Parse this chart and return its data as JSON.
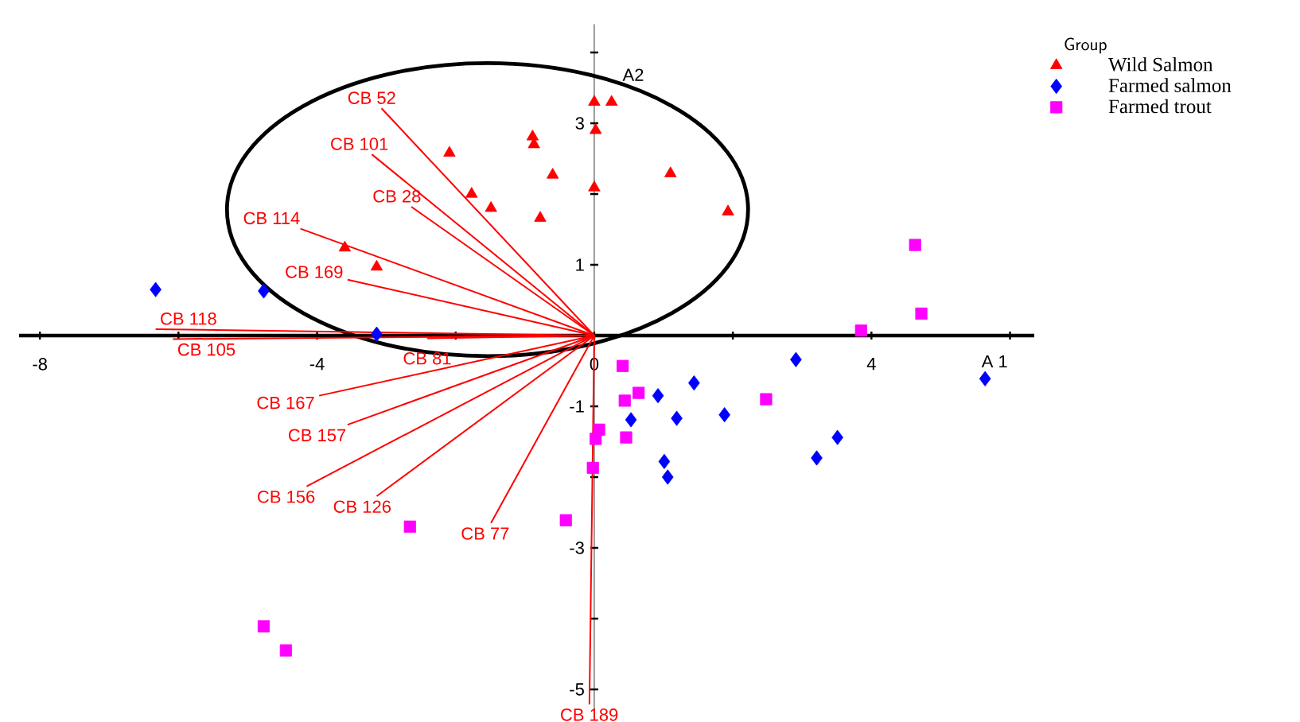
{
  "chart_data": {
    "type": "scatter",
    "xlabel": "A 1",
    "ylabel": "A2",
    "legend_title": "Group",
    "legend": "top right",
    "grid": false,
    "xlim": [
      -8.3,
      6.35
    ],
    "ylim": [
      -5.4,
      4.4
    ],
    "xticks": [
      -8,
      {
        "value": -6,
        "label": null
      },
      -4,
      {
        "value": -2,
        "label": null
      },
      0,
      {
        "value": 2,
        "label": null
      },
      4,
      {
        "value": 6,
        "label": null
      }
    ],
    "yticks": [
      {
        "value": 4,
        "label": null
      },
      3,
      {
        "value": 2,
        "label": null
      },
      1,
      -1,
      {
        "value": -2,
        "label": null
      },
      -3,
      {
        "value": -4,
        "label": null
      },
      -5
    ],
    "series": [
      {
        "name": "Wild Salmon",
        "type": "scatter",
        "marker": "triangle",
        "color": "#ff0000",
        "x": [
          -3.6,
          -3.14,
          -2.09,
          -1.77,
          -1.49,
          -0.89,
          -0.87,
          -0.6,
          -0.78,
          0,
          0.25,
          0.02,
          0,
          1.1,
          1.93
        ],
        "values": [
          1.24,
          0.97,
          2.58,
          2.0,
          1.8,
          2.81,
          2.7,
          2.27,
          1.66,
          3.3,
          3.3,
          2.9,
          2.09,
          2.29,
          1.75
        ]
      },
      {
        "name": "Farmed salmon",
        "type": "scatter",
        "marker": "diamond",
        "color": "#0000ff",
        "x": [
          -6.33,
          -4.77,
          -3.14,
          2.91,
          1.44,
          0.92,
          0.53,
          1.19,
          1.88,
          1.01,
          1.06,
          3.21,
          3.51,
          5.64
        ],
        "values": [
          0.65,
          0.63,
          0.02,
          -0.34,
          -0.67,
          -0.85,
          -1.19,
          -1.17,
          -1.12,
          -1.78,
          -2.0,
          -1.73,
          -1.44,
          -0.61
        ]
      },
      {
        "name": "Farmed trout",
        "type": "scatter",
        "marker": "square",
        "color": "#ff00ff",
        "x": [
          4.63,
          4.72,
          3.85,
          0.41,
          0.64,
          0.44,
          0.46,
          0.07,
          0.02,
          -0.02,
          2.48,
          -0.41,
          -2.66,
          -4.77,
          -4.45
        ],
        "values": [
          1.28,
          0.31,
          0.07,
          -0.43,
          -0.81,
          -0.92,
          -1.44,
          -1.33,
          -1.46,
          -1.87,
          -0.9,
          -2.61,
          -2.7,
          -4.11,
          -4.45
        ]
      },
      {
        "name": "CB 52",
        "type": "line",
        "color": "#ff0000",
        "x": [
          0,
          -3.07
        ],
        "values": [
          0,
          3.21
        ]
      },
      {
        "name": "CB 101",
        "type": "line",
        "color": "#ff0000",
        "x": [
          0,
          -3.21
        ],
        "values": [
          0,
          2.56
        ]
      },
      {
        "name": "CB 28",
        "type": "line",
        "color": "#ff0000",
        "x": [
          0,
          -2.64
        ],
        "values": [
          0,
          1.82
        ]
      },
      {
        "name": "CB 114",
        "type": "line",
        "color": "#ff0000",
        "x": [
          0,
          -4.24
        ],
        "values": [
          0,
          1.51
        ]
      },
      {
        "name": "CB 169",
        "type": "line",
        "color": "#ff0000",
        "x": [
          0,
          -3.56
        ],
        "values": [
          0,
          0.79
        ]
      },
      {
        "name": "CB 118",
        "type": "line",
        "color": "#ff0000",
        "x": [
          0,
          -6.33
        ],
        "values": [
          0,
          0.09
        ]
      },
      {
        "name": "CB 105",
        "type": "line",
        "color": "#ff0000",
        "x": [
          0,
          -6.08
        ],
        "values": [
          0,
          -0.05
        ]
      },
      {
        "name": "CB 81",
        "type": "line",
        "color": "#ff0000",
        "x": [
          0,
          -2.41
        ],
        "values": [
          0,
          -0.04
        ]
      },
      {
        "name": "CB 167",
        "type": "line",
        "color": "#ff0000",
        "x": [
          0,
          -3.97
        ],
        "values": [
          0,
          -0.85
        ]
      },
      {
        "name": "CB 157",
        "type": "line",
        "color": "#ff0000",
        "x": [
          0,
          -3.56
        ],
        "values": [
          0,
          -1.26
        ]
      },
      {
        "name": "CB 156",
        "type": "line",
        "color": "#ff0000",
        "x": [
          0,
          -4.15
        ],
        "values": [
          0,
          -2.13
        ]
      },
      {
        "name": "CB 126",
        "type": "line",
        "color": "#ff0000",
        "x": [
          0,
          -3.14
        ],
        "values": [
          0,
          -2.27
        ]
      },
      {
        "name": "CB 77",
        "type": "line",
        "color": "#ff0000",
        "x": [
          0,
          -1.49
        ],
        "values": [
          0,
          -2.65
        ]
      },
      {
        "name": "CB 189",
        "type": "line",
        "color": "#ff0000",
        "x": [
          0,
          -0.07
        ],
        "values": [
          0,
          -5.21
        ]
      }
    ]
  }
}
